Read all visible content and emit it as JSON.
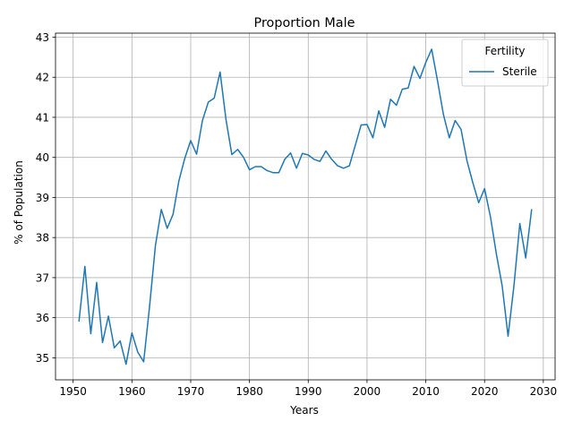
{
  "chart_data": {
    "type": "line",
    "title": "Proportion Male",
    "xlabel": "Years",
    "ylabel": "% of Population",
    "xlim": [
      1947,
      2032
    ],
    "ylim": [
      34.45,
      43.1
    ],
    "x_ticks": [
      1950,
      1960,
      1970,
      1980,
      1990,
      2000,
      2010,
      2020,
      2030
    ],
    "y_ticks": [
      35,
      36,
      37,
      38,
      39,
      40,
      41,
      42,
      43
    ],
    "grid": true,
    "legend": {
      "title": "Fertility",
      "placement": "top-right"
    },
    "series_color": "#1f77b4",
    "series": [
      {
        "name": "Sterile",
        "x": [
          1951,
          1952,
          1953,
          1954,
          1955,
          1956,
          1957,
          1958,
          1959,
          1960,
          1961,
          1962,
          1963,
          1964,
          1965,
          1966,
          1967,
          1968,
          1969,
          1970,
          1971,
          1972,
          1973,
          1974,
          1975,
          1976,
          1977,
          1978,
          1979,
          1980,
          1981,
          1982,
          1983,
          1984,
          1985,
          1986,
          1987,
          1988,
          1989,
          1990,
          1991,
          1992,
          1993,
          1994,
          1995,
          1996,
          1997,
          1998,
          1999,
          2000,
          2001,
          2002,
          2003,
          2004,
          2005,
          2006,
          2007,
          2008,
          2009,
          2010,
          2011,
          2012,
          2013,
          2014,
          2015,
          2016,
          2017,
          2018,
          2019,
          2020,
          2021,
          2022,
          2023,
          2024,
          2025,
          2026,
          2027,
          2028
        ],
        "values": [
          35.92,
          37.28,
          35.6,
          36.88,
          35.38,
          36.04,
          35.25,
          35.42,
          34.84,
          35.62,
          35.14,
          34.9,
          36.28,
          37.8,
          38.7,
          38.23,
          38.58,
          39.42,
          39.98,
          40.42,
          40.08,
          40.92,
          41.38,
          41.48,
          42.13,
          40.95,
          40.07,
          40.2,
          40.0,
          39.69,
          39.77,
          39.77,
          39.67,
          39.62,
          39.62,
          39.95,
          40.11,
          39.73,
          40.1,
          40.06,
          39.95,
          39.9,
          40.16,
          39.95,
          39.79,
          39.73,
          39.79,
          40.3,
          40.81,
          40.82,
          40.49,
          41.16,
          40.75,
          41.45,
          41.3,
          41.7,
          41.73,
          42.27,
          41.97,
          42.37,
          42.7,
          41.91,
          41.07,
          40.49,
          40.92,
          40.7,
          39.92,
          39.37,
          38.87,
          39.22,
          38.52,
          37.6,
          36.79,
          35.54,
          36.8,
          38.35,
          37.49,
          38.69
        ]
      }
    ]
  }
}
